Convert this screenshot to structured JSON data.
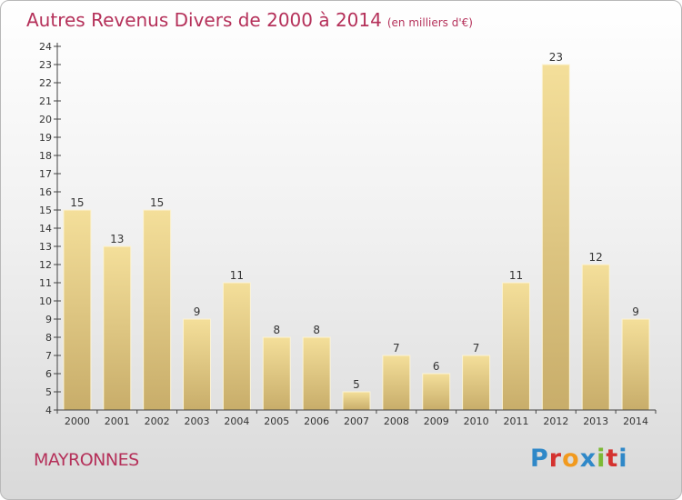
{
  "title": "Autres Revenus Divers de 2000 à 2014",
  "subtitle": "(en milliers d'€)",
  "commune": "MAYRONNES",
  "logo": {
    "letters": [
      "P",
      "r",
      "o",
      "x",
      "i",
      "t",
      "i"
    ],
    "colors": [
      "#2f88c8",
      "#d4322f",
      "#f19a1f",
      "#2f88c8",
      "#7cb934",
      "#d4322f",
      "#2f88c8"
    ]
  },
  "colors": {
    "title": "#b5315a",
    "bar_light": "#f4df9a",
    "bar_dark": "#c8ad6a",
    "axis": "#444444",
    "text": "#333333"
  },
  "chart_data": {
    "type": "bar",
    "categories": [
      "2000",
      "2001",
      "2002",
      "2003",
      "2004",
      "2005",
      "2006",
      "2007",
      "2008",
      "2009",
      "2010",
      "2011",
      "2012",
      "2013",
      "2014"
    ],
    "values": [
      15,
      13,
      15,
      9,
      11,
      8,
      8,
      5,
      7,
      6,
      7,
      11,
      23,
      12,
      9
    ],
    "data_labels": [
      "15",
      "13",
      "15",
      "9",
      "11",
      "8",
      "8",
      "5",
      "7",
      "6",
      "7",
      "11",
      "23",
      "12",
      "9"
    ],
    "y_ticks": [
      "4",
      "5",
      "6",
      "7",
      "8",
      "9",
      "10",
      "11",
      "12",
      "13",
      "14",
      "15",
      "16",
      "17",
      "18",
      "19",
      "20",
      "21",
      "22",
      "23",
      "24"
    ],
    "ylim": [
      4,
      24
    ],
    "grid": false,
    "legend": "none"
  }
}
